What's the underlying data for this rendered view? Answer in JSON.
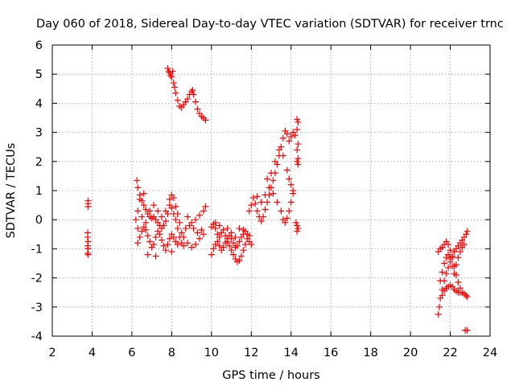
{
  "chart_data": {
    "type": "scatter",
    "title": "Day 060 of 2018, Sidereal Day-to-day VTEC variation (SDTVAR) for receiver trnc",
    "xlabel": "GPS time / hours",
    "ylabel": "SDTVAR / TECUs",
    "xlim": [
      2,
      24
    ],
    "ylim": [
      -4,
      6
    ],
    "xticks": [
      2,
      4,
      6,
      8,
      10,
      12,
      14,
      16,
      18,
      20,
      22,
      24
    ],
    "yticks": [
      -4,
      -3,
      -2,
      -1,
      0,
      1,
      2,
      3,
      4,
      5,
      6
    ],
    "grid": true,
    "marker": "+",
    "color": "#ff0000",
    "series": [
      {
        "name": "SDTVAR",
        "points": [
          [
            3.8,
            0.65
          ],
          [
            3.8,
            0.55
          ],
          [
            3.8,
            0.45
          ],
          [
            3.78,
            -0.45
          ],
          [
            3.78,
            -0.6
          ],
          [
            3.8,
            -0.75
          ],
          [
            3.78,
            -0.9
          ],
          [
            3.8,
            -1.0
          ],
          [
            3.78,
            -1.15
          ],
          [
            3.8,
            -1.2
          ],
          [
            6.25,
            1.35
          ],
          [
            6.3,
            1.1
          ],
          [
            6.4,
            0.85
          ],
          [
            6.5,
            0.65
          ],
          [
            6.6,
            0.5
          ],
          [
            6.7,
            0.35
          ],
          [
            6.8,
            0.2
          ],
          [
            6.9,
            0.1
          ],
          [
            7.0,
            0.05
          ],
          [
            7.1,
            0.1
          ],
          [
            7.2,
            0.0
          ],
          [
            7.3,
            -0.1
          ],
          [
            7.4,
            -0.2
          ],
          [
            7.5,
            -0.3
          ],
          [
            7.6,
            -0.2
          ],
          [
            7.7,
            -0.05
          ],
          [
            7.8,
            0.2
          ],
          [
            7.9,
            0.5
          ],
          [
            8.0,
            0.4
          ],
          [
            8.1,
            0.2
          ],
          [
            8.2,
            0.0
          ],
          [
            8.3,
            -0.3
          ],
          [
            8.4,
            -0.6
          ],
          [
            8.5,
            -0.8
          ],
          [
            8.6,
            -0.9
          ],
          [
            6.3,
            -0.8
          ],
          [
            6.4,
            -0.6
          ],
          [
            6.5,
            -0.4
          ],
          [
            6.6,
            -0.25
          ],
          [
            6.7,
            -0.35
          ],
          [
            6.8,
            -0.55
          ],
          [
            6.9,
            -0.75
          ],
          [
            7.0,
            -0.95
          ],
          [
            7.1,
            -0.85
          ],
          [
            7.2,
            -0.6
          ],
          [
            7.3,
            -0.4
          ],
          [
            7.4,
            -0.5
          ],
          [
            7.5,
            -0.7
          ],
          [
            7.6,
            -0.9
          ],
          [
            7.7,
            -1.05
          ],
          [
            7.8,
            -0.85
          ],
          [
            7.9,
            -0.65
          ],
          [
            8.0,
            -0.5
          ],
          [
            8.1,
            -0.6
          ],
          [
            8.2,
            -0.75
          ],
          [
            8.3,
            -0.85
          ],
          [
            6.3,
            0.3
          ],
          [
            6.5,
            0.1
          ],
          [
            6.7,
            -0.1
          ],
          [
            6.9,
            0.3
          ],
          [
            7.1,
            0.5
          ],
          [
            7.3,
            0.3
          ],
          [
            7.5,
            0.1
          ],
          [
            7.7,
            0.3
          ],
          [
            7.9,
            0.7
          ],
          [
            8.0,
            0.85
          ],
          [
            8.1,
            0.75
          ],
          [
            8.2,
            0.45
          ],
          [
            8.3,
            0.2
          ],
          [
            8.4,
            -0.1
          ],
          [
            8.5,
            -0.45
          ],
          [
            6.2,
            0.0
          ],
          [
            6.3,
            -0.3
          ],
          [
            6.4,
            0.7
          ],
          [
            6.6,
            0.9
          ],
          [
            6.8,
            -1.2
          ],
          [
            7.2,
            -1.25
          ],
          [
            7.6,
            -0.2
          ],
          [
            8.0,
            -1.1
          ],
          [
            8.6,
            -0.6
          ],
          [
            8.8,
            -0.8
          ],
          [
            9.0,
            -0.95
          ],
          [
            9.2,
            -0.85
          ],
          [
            9.4,
            -0.65
          ],
          [
            9.6,
            -0.5
          ],
          [
            8.7,
            -0.3
          ],
          [
            8.9,
            -0.2
          ],
          [
            9.1,
            -0.3
          ],
          [
            9.3,
            -0.45
          ],
          [
            9.5,
            -0.35
          ],
          [
            8.8,
            0.1
          ],
          [
            9.0,
            -0.1
          ],
          [
            9.2,
            0.0
          ],
          [
            9.4,
            0.15
          ],
          [
            9.6,
            0.3
          ],
          [
            9.7,
            0.45
          ],
          [
            7.8,
            5.2
          ],
          [
            7.85,
            5.1
          ],
          [
            7.9,
            5.05
          ],
          [
            7.95,
            4.95
          ],
          [
            8.0,
            4.9
          ],
          [
            8.05,
            5.1
          ],
          [
            8.1,
            4.7
          ],
          [
            8.15,
            4.55
          ],
          [
            8.2,
            4.35
          ],
          [
            8.3,
            4.1
          ],
          [
            8.4,
            3.9
          ],
          [
            8.5,
            3.85
          ],
          [
            8.6,
            3.95
          ],
          [
            8.7,
            4.05
          ],
          [
            8.8,
            4.15
          ],
          [
            8.9,
            4.3
          ],
          [
            9.0,
            4.4
          ],
          [
            9.05,
            4.45
          ],
          [
            9.1,
            4.3
          ],
          [
            9.2,
            4.05
          ],
          [
            9.3,
            3.8
          ],
          [
            9.4,
            3.65
          ],
          [
            9.5,
            3.55
          ],
          [
            9.6,
            3.5
          ],
          [
            9.7,
            3.42
          ],
          [
            10.0,
            -0.25
          ],
          [
            10.1,
            -0.15
          ],
          [
            10.2,
            -0.3
          ],
          [
            10.3,
            -0.5
          ],
          [
            10.4,
            -0.6
          ],
          [
            10.5,
            -0.45
          ],
          [
            10.6,
            -0.35
          ],
          [
            10.7,
            -0.55
          ],
          [
            10.8,
            -0.75
          ],
          [
            10.9,
            -0.9
          ],
          [
            11.0,
            -1.05
          ],
          [
            11.1,
            -1.2
          ],
          [
            11.2,
            -1.35
          ],
          [
            11.3,
            -1.45
          ],
          [
            11.4,
            -1.4
          ],
          [
            11.5,
            -1.25
          ],
          [
            11.6,
            -1.05
          ],
          [
            11.7,
            -0.85
          ],
          [
            11.8,
            -0.65
          ],
          [
            11.9,
            -0.75
          ],
          [
            12.0,
            -0.85
          ],
          [
            10.0,
            -1.2
          ],
          [
            10.1,
            -1.0
          ],
          [
            10.2,
            -0.85
          ],
          [
            10.3,
            -0.75
          ],
          [
            10.4,
            -0.9
          ],
          [
            10.5,
            -1.05
          ],
          [
            10.6,
            -0.95
          ],
          [
            10.7,
            -0.8
          ],
          [
            10.8,
            -0.65
          ],
          [
            10.9,
            -0.55
          ],
          [
            11.0,
            -0.65
          ],
          [
            11.1,
            -0.8
          ],
          [
            11.2,
            -0.95
          ],
          [
            11.3,
            -0.9
          ],
          [
            11.4,
            -0.75
          ],
          [
            11.5,
            -0.6
          ],
          [
            11.6,
            -0.5
          ],
          [
            11.7,
            -0.4
          ],
          [
            11.8,
            -0.5
          ],
          [
            10.2,
            -0.1
          ],
          [
            10.4,
            -0.2
          ],
          [
            10.8,
            -0.3
          ],
          [
            11.2,
            -0.6
          ],
          [
            11.6,
            -0.35
          ],
          [
            11.9,
            -0.55
          ],
          [
            11.4,
            -0.3
          ],
          [
            11.0,
            -0.45
          ],
          [
            11.9,
            0.3
          ],
          [
            12.0,
            0.5
          ],
          [
            12.1,
            0.75
          ],
          [
            12.2,
            0.55
          ],
          [
            12.3,
            0.3
          ],
          [
            12.4,
            0.1
          ],
          [
            12.5,
            -0.05
          ],
          [
            12.6,
            0.1
          ],
          [
            12.7,
            0.35
          ],
          [
            12.8,
            0.6
          ],
          [
            12.9,
            0.85
          ],
          [
            13.0,
            1.1
          ],
          [
            13.1,
            1.35
          ],
          [
            13.2,
            1.6
          ],
          [
            13.3,
            1.9
          ],
          [
            13.4,
            2.2
          ],
          [
            13.5,
            2.5
          ],
          [
            13.6,
            2.8
          ],
          [
            13.7,
            3.05
          ],
          [
            13.8,
            2.95
          ],
          [
            13.9,
            2.7
          ],
          [
            14.0,
            2.85
          ],
          [
            14.1,
            3.0
          ],
          [
            14.2,
            2.9
          ],
          [
            12.3,
            0.8
          ],
          [
            12.5,
            0.6
          ],
          [
            12.7,
            0.85
          ],
          [
            12.9,
            1.1
          ],
          [
            13.1,
            0.9
          ],
          [
            13.3,
            0.6
          ],
          [
            13.5,
            0.3
          ],
          [
            13.6,
            0.0
          ],
          [
            13.7,
            -0.1
          ],
          [
            13.8,
            0.05
          ],
          [
            13.9,
            0.3
          ],
          [
            14.0,
            0.6
          ],
          [
            14.1,
            0.9
          ],
          [
            12.8,
            1.4
          ],
          [
            13.0,
            1.6
          ],
          [
            13.2,
            2.0
          ],
          [
            13.4,
            2.4
          ],
          [
            13.6,
            2.2
          ],
          [
            13.8,
            1.7
          ],
          [
            13.9,
            1.4
          ],
          [
            14.0,
            1.2
          ],
          [
            14.1,
            1.0
          ],
          [
            14.3,
            3.45
          ],
          [
            14.35,
            3.35
          ],
          [
            14.3,
            3.1
          ],
          [
            14.35,
            2.6
          ],
          [
            14.3,
            2.4
          ],
          [
            14.35,
            2.1
          ],
          [
            14.3,
            2.0
          ],
          [
            14.35,
            1.9
          ],
          [
            14.25,
            -0.1
          ],
          [
            14.3,
            -0.2
          ],
          [
            14.35,
            -0.3
          ],
          [
            14.3,
            -0.4
          ],
          [
            21.4,
            -3.25
          ],
          [
            21.45,
            -3.0
          ],
          [
            21.5,
            -2.7
          ],
          [
            21.6,
            -2.4
          ],
          [
            21.7,
            -2.1
          ],
          [
            21.8,
            -1.85
          ],
          [
            21.9,
            -1.65
          ],
          [
            22.0,
            -1.45
          ],
          [
            22.1,
            -1.25
          ],
          [
            22.2,
            -1.1
          ],
          [
            22.3,
            -1.0
          ],
          [
            22.4,
            -0.9
          ],
          [
            22.5,
            -0.8
          ],
          [
            22.6,
            -0.7
          ],
          [
            22.7,
            -0.6
          ],
          [
            22.8,
            -0.5
          ],
          [
            22.85,
            -0.4
          ],
          [
            21.4,
            -1.1
          ],
          [
            21.5,
            -1.0
          ],
          [
            21.6,
            -0.95
          ],
          [
            21.7,
            -0.85
          ],
          [
            21.8,
            -0.75
          ],
          [
            21.9,
            -0.85
          ],
          [
            22.0,
            -1.05
          ],
          [
            22.1,
            -1.3
          ],
          [
            22.2,
            -1.6
          ],
          [
            22.3,
            -1.9
          ],
          [
            22.4,
            -2.15
          ],
          [
            22.5,
            -2.35
          ],
          [
            22.6,
            -2.5
          ],
          [
            22.7,
            -2.55
          ],
          [
            22.8,
            -2.6
          ],
          [
            22.85,
            -2.65
          ],
          [
            21.5,
            -2.1
          ],
          [
            21.6,
            -1.8
          ],
          [
            21.7,
            -1.5
          ],
          [
            21.8,
            -1.3
          ],
          [
            21.9,
            -1.2
          ],
          [
            22.0,
            -1.35
          ],
          [
            22.1,
            -1.6
          ],
          [
            22.2,
            -1.85
          ],
          [
            22.3,
            -1.55
          ],
          [
            22.4,
            -1.3
          ],
          [
            22.5,
            -1.1
          ],
          [
            22.6,
            -0.95
          ],
          [
            22.7,
            -0.85
          ],
          [
            21.6,
            -2.6
          ],
          [
            21.7,
            -2.45
          ],
          [
            21.8,
            -2.35
          ],
          [
            21.9,
            -2.3
          ],
          [
            22.0,
            -2.25
          ],
          [
            22.1,
            -2.3
          ],
          [
            22.2,
            -2.4
          ],
          [
            22.3,
            -2.45
          ],
          [
            22.4,
            -2.5
          ],
          [
            22.5,
            -2.5
          ],
          [
            22.75,
            -3.8
          ],
          [
            22.85,
            -3.8
          ]
        ]
      }
    ]
  }
}
